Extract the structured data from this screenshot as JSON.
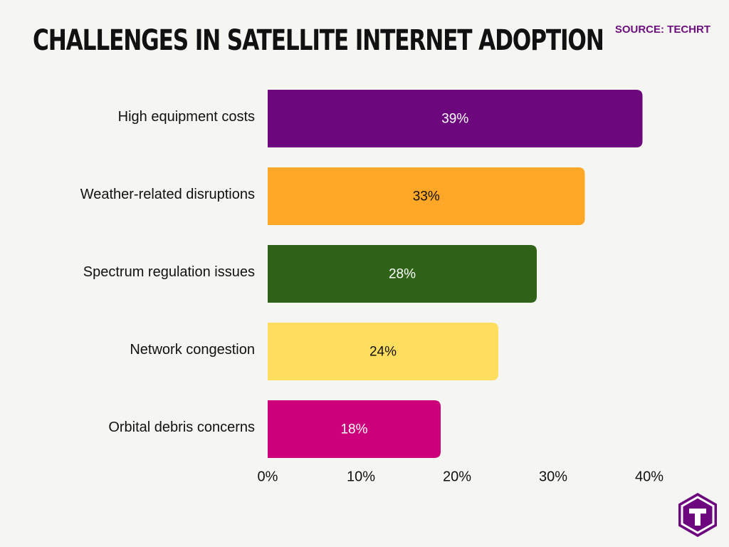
{
  "title": "CHALLENGES IN SATELLITE INTERNET ADOPTION",
  "source": "SOURCE: TECHRT",
  "logo_icon": "techrt-logo-icon",
  "chart_data": {
    "type": "bar",
    "orientation": "horizontal",
    "categories": [
      "High equipment costs",
      "Weather-related disruptions",
      "Spectrum regulation issues",
      "Network congestion",
      "Orbital debris concerns"
    ],
    "values": [
      39,
      33,
      28,
      24,
      18
    ],
    "value_labels": [
      "39%",
      "33%",
      "28%",
      "24%",
      "18%"
    ],
    "colors": [
      "#6d077e",
      "#ffa726",
      "#2e6318",
      "#ffdd5e",
      "#cc007a"
    ],
    "label_colors": [
      "#ffffff",
      "#111111",
      "#ffffff",
      "#111111",
      "#ffffff"
    ],
    "xlim": [
      0,
      40
    ],
    "xticks": [
      0,
      10,
      20,
      30,
      40
    ],
    "xtick_labels": [
      "0%",
      "10%",
      "20%",
      "30%",
      "40%"
    ],
    "grid": false,
    "legend": "none"
  }
}
